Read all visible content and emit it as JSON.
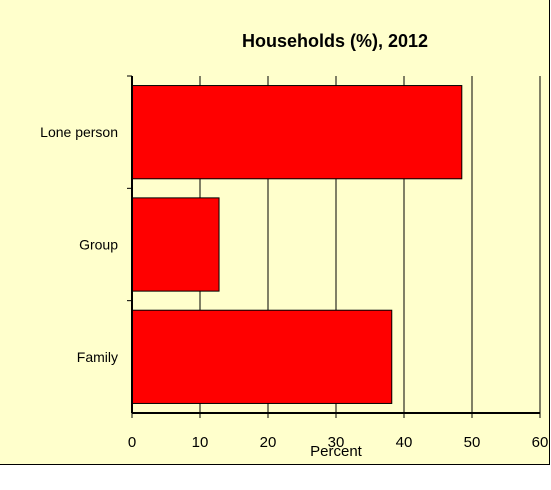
{
  "chart_data": {
    "type": "bar",
    "orientation": "horizontal",
    "title": "Households (%), 2012",
    "xlabel": "Percent",
    "ylabel": "",
    "categories": [
      "Lone person",
      "Group",
      "Family"
    ],
    "values": [
      48.5,
      12.8,
      38.2
    ],
    "xlim": [
      0,
      60
    ],
    "xticks": [
      "0",
      "10",
      "20",
      "30",
      "40",
      "50",
      "60"
    ],
    "grid": true,
    "legend": "none",
    "colors": {
      "bar": "#FF0000",
      "bar_outline": "#000000",
      "background": "#FFFFCC",
      "plot_background": "#FFFFCC",
      "grid": "#000000"
    }
  }
}
